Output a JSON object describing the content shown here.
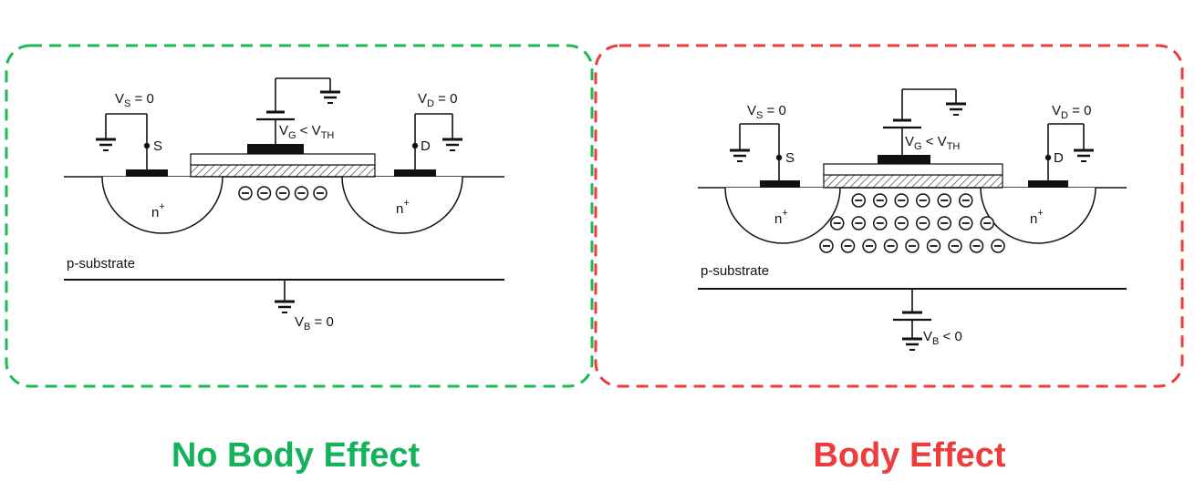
{
  "panels": [
    {
      "id": "no-body-effect",
      "title": "No Body Effect",
      "title_color": "#14b25a",
      "border_color": "#1db954",
      "vs": {
        "main": "V",
        "sub": "S",
        "rest": " = 0"
      },
      "vd": {
        "main": "V",
        "sub": "D",
        "rest": " = 0"
      },
      "vg": {
        "main": "V",
        "sub": "G",
        "rest": " < V",
        "sub2": "TH"
      },
      "vb": {
        "main": "V",
        "sub": "B",
        "rest": " = 0"
      },
      "source_label": "S",
      "drain_label": "D",
      "n_left": "n",
      "n_right": "n",
      "plus": "+",
      "substrate_label": "p-substrate",
      "charge_rows": [
        5
      ]
    },
    {
      "id": "body-effect",
      "title": "Body Effect",
      "title_color": "#ee3b3b",
      "border_color": "#ee3b3b",
      "vs": {
        "main": "V",
        "sub": "S",
        "rest": " = 0"
      },
      "vd": {
        "main": "V",
        "sub": "D",
        "rest": " = 0"
      },
      "vg": {
        "main": "V",
        "sub": "G",
        "rest": " < V",
        "sub2": "TH"
      },
      "vb": {
        "main": "V",
        "sub": "B",
        "rest": " < 0"
      },
      "source_label": "S",
      "drain_label": "D",
      "n_left": "n",
      "n_right": "n",
      "plus": "+",
      "substrate_label": "p-substrate",
      "charge_rows": [
        6,
        8,
        9
      ]
    }
  ],
  "charge_symbol": "⊖"
}
